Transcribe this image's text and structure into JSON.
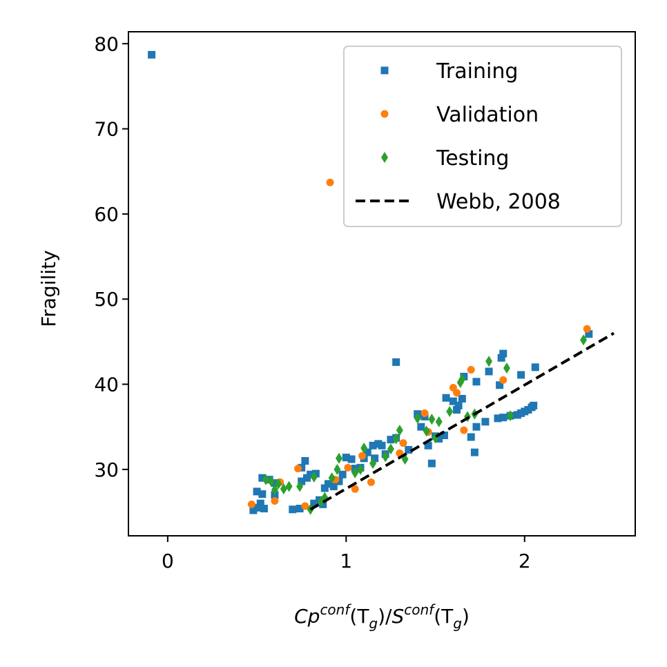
{
  "chart_data": {
    "type": "scatter",
    "xlabel": {
      "base1": "Cp",
      "sup1": "conf",
      "paren1_open": "(T",
      "sub1": "g",
      "paren1_close": ")/",
      "base2": "S",
      "sup2": "conf",
      "paren2_open": "(T",
      "sub2": "g",
      "paren2_close": ")"
    },
    "ylabel": "Fragility",
    "xlim": [
      -0.22,
      2.62
    ],
    "ylim": [
      22.2,
      81.4
    ],
    "xticks": [
      {
        "value": 0,
        "label": "0"
      },
      {
        "value": 1,
        "label": "1"
      },
      {
        "value": 2,
        "label": "2"
      }
    ],
    "yticks": [
      {
        "value": 30,
        "label": "30"
      },
      {
        "value": 40,
        "label": "40"
      },
      {
        "value": 50,
        "label": "50"
      },
      {
        "value": 60,
        "label": "60"
      },
      {
        "value": 70,
        "label": "70"
      },
      {
        "value": 80,
        "label": "80"
      }
    ],
    "grid": false,
    "legend_position": "top-right",
    "series": [
      {
        "name": "Training",
        "marker": "square",
        "color": "#1f77b4",
        "points": [
          [
            -0.09,
            78.7
          ],
          [
            0.48,
            25.2
          ],
          [
            0.5,
            25.5
          ],
          [
            0.52,
            26.0
          ],
          [
            0.54,
            25.4
          ],
          [
            0.5,
            27.4
          ],
          [
            0.53,
            27.1
          ],
          [
            0.53,
            29.0
          ],
          [
            0.57,
            28.8
          ],
          [
            0.6,
            28.4
          ],
          [
            0.6,
            27.0
          ],
          [
            0.7,
            25.3
          ],
          [
            0.74,
            25.4
          ],
          [
            0.75,
            28.6
          ],
          [
            0.75,
            30.2
          ],
          [
            0.77,
            31.0
          ],
          [
            0.78,
            29.0
          ],
          [
            0.8,
            29.4
          ],
          [
            0.83,
            29.5
          ],
          [
            0.82,
            26.0
          ],
          [
            0.85,
            26.4
          ],
          [
            0.87,
            25.9
          ],
          [
            0.88,
            27.8
          ],
          [
            0.9,
            28.3
          ],
          [
            0.93,
            28.0
          ],
          [
            0.96,
            28.6
          ],
          [
            0.98,
            29.4
          ],
          [
            1.0,
            31.4
          ],
          [
            1.03,
            31.2
          ],
          [
            1.05,
            30.1
          ],
          [
            1.08,
            30.2
          ],
          [
            1.1,
            31.3
          ],
          [
            1.12,
            32.0
          ],
          [
            1.15,
            32.8
          ],
          [
            1.16,
            31.3
          ],
          [
            1.18,
            33.0
          ],
          [
            1.2,
            32.8
          ],
          [
            1.22,
            31.8
          ],
          [
            1.25,
            33.5
          ],
          [
            1.28,
            33.7
          ],
          [
            1.28,
            42.6
          ],
          [
            1.35,
            32.3
          ],
          [
            1.4,
            36.5
          ],
          [
            1.42,
            35.0
          ],
          [
            1.44,
            36.2
          ],
          [
            1.46,
            32.8
          ],
          [
            1.48,
            30.7
          ],
          [
            1.5,
            33.9
          ],
          [
            1.52,
            33.6
          ],
          [
            1.55,
            34.0
          ],
          [
            1.56,
            38.4
          ],
          [
            1.6,
            38.0
          ],
          [
            1.62,
            37.0
          ],
          [
            1.63,
            37.5
          ],
          [
            1.65,
            38.3
          ],
          [
            1.66,
            40.9
          ],
          [
            1.7,
            33.8
          ],
          [
            1.72,
            32.0
          ],
          [
            1.73,
            35.0
          ],
          [
            1.73,
            40.3
          ],
          [
            1.78,
            35.6
          ],
          [
            1.8,
            41.5
          ],
          [
            1.85,
            36.0
          ],
          [
            1.86,
            39.9
          ],
          [
            1.87,
            43.1
          ],
          [
            1.88,
            43.6
          ],
          [
            1.88,
            36.1
          ],
          [
            1.92,
            36.3
          ],
          [
            1.96,
            36.4
          ],
          [
            1.98,
            36.6
          ],
          [
            1.98,
            41.1
          ],
          [
            2.0,
            36.8
          ],
          [
            2.02,
            37.0
          ],
          [
            2.04,
            37.3
          ],
          [
            2.05,
            37.5
          ],
          [
            2.06,
            42.0
          ],
          [
            2.36,
            45.9
          ]
        ]
      },
      {
        "name": "Validation",
        "marker": "circle",
        "color": "#ff7f0e",
        "points": [
          [
            0.47,
            25.9
          ],
          [
            0.6,
            26.3
          ],
          [
            0.63,
            28.5
          ],
          [
            0.73,
            30.1
          ],
          [
            0.77,
            25.7
          ],
          [
            0.91,
            63.7
          ],
          [
            0.94,
            28.8
          ],
          [
            1.01,
            30.2
          ],
          [
            1.05,
            27.7
          ],
          [
            1.09,
            31.6
          ],
          [
            1.14,
            28.5
          ],
          [
            1.3,
            31.9
          ],
          [
            1.32,
            33.1
          ],
          [
            1.44,
            36.6
          ],
          [
            1.46,
            34.4
          ],
          [
            1.6,
            39.6
          ],
          [
            1.62,
            39.0
          ],
          [
            1.66,
            34.6
          ],
          [
            1.7,
            41.7
          ],
          [
            1.88,
            40.5
          ],
          [
            2.35,
            46.5
          ]
        ]
      },
      {
        "name": "Testing",
        "marker": "diamond",
        "color": "#2ca02c",
        "points": [
          [
            0.55,
            28.8
          ],
          [
            0.58,
            28.6
          ],
          [
            0.6,
            27.6
          ],
          [
            0.62,
            28.3
          ],
          [
            0.65,
            27.7
          ],
          [
            0.68,
            28.0
          ],
          [
            0.74,
            28.0
          ],
          [
            0.8,
            25.3
          ],
          [
            0.82,
            29.1
          ],
          [
            0.86,
            26.2
          ],
          [
            0.88,
            26.7
          ],
          [
            0.92,
            29.0
          ],
          [
            0.95,
            30.0
          ],
          [
            0.96,
            31.3
          ],
          [
            1.05,
            29.6
          ],
          [
            1.08,
            30.0
          ],
          [
            1.1,
            32.5
          ],
          [
            1.15,
            30.7
          ],
          [
            1.22,
            31.5
          ],
          [
            1.25,
            32.4
          ],
          [
            1.28,
            33.6
          ],
          [
            1.3,
            34.6
          ],
          [
            1.33,
            31.2
          ],
          [
            1.4,
            36.0
          ],
          [
            1.45,
            34.5
          ],
          [
            1.48,
            35.9
          ],
          [
            1.5,
            33.7
          ],
          [
            1.52,
            35.6
          ],
          [
            1.58,
            36.8
          ],
          [
            1.64,
            40.2
          ],
          [
            1.65,
            40.6
          ],
          [
            1.68,
            36.2
          ],
          [
            1.72,
            36.5
          ],
          [
            1.8,
            42.7
          ],
          [
            1.9,
            41.9
          ],
          [
            1.92,
            36.3
          ],
          [
            2.33,
            45.2
          ]
        ]
      },
      {
        "name": "Webb, 2008",
        "marker": "dashed-line",
        "color": "#000000",
        "points": [
          [
            0.8,
            25.3
          ],
          [
            2.5,
            46.0
          ]
        ]
      }
    ]
  }
}
